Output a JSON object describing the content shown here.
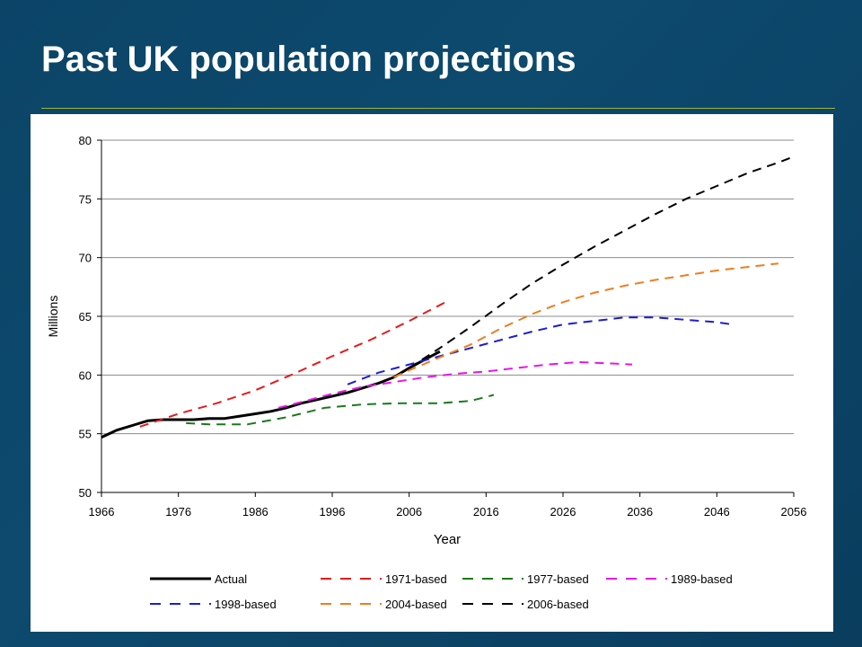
{
  "slide": {
    "title": "Past UK population projections"
  },
  "chart_data": {
    "type": "line",
    "title": "",
    "xlabel": "Year",
    "ylabel": "Millions",
    "xlim": [
      1966,
      2056
    ],
    "ylim": [
      50,
      80
    ],
    "x_ticks": [
      1966,
      1976,
      1986,
      1996,
      2006,
      2016,
      2026,
      2036,
      2046,
      2056
    ],
    "y_ticks": [
      50,
      55,
      60,
      65,
      70,
      75,
      80
    ],
    "grid": "horizontal",
    "legend_position": "bottom",
    "series": [
      {
        "name": "Actual",
        "color": "#000000",
        "style": "solid",
        "x": [
          1966,
          1968,
          1970,
          1972,
          1974,
          1976,
          1978,
          1980,
          1982,
          1984,
          1986,
          1988,
          1990,
          1992,
          1994,
          1996,
          1998,
          2000,
          2002,
          2004,
          2006,
          2008,
          2010
        ],
        "y": [
          54.7,
          55.3,
          55.7,
          56.1,
          56.2,
          56.2,
          56.2,
          56.3,
          56.3,
          56.5,
          56.7,
          56.9,
          57.2,
          57.6,
          57.9,
          58.2,
          58.5,
          58.9,
          59.3,
          59.8,
          60.6,
          61.3,
          62.0
        ]
      },
      {
        "name": "1971-based",
        "color": "#e8191c",
        "style": "dashed",
        "x": [
          1971,
          1976,
          1981,
          1986,
          1991,
          1996,
          2001,
          2006,
          2011
        ],
        "y": [
          55.6,
          56.7,
          57.6,
          58.7,
          60.1,
          61.6,
          63.0,
          64.6,
          66.3
        ]
      },
      {
        "name": "1977-based",
        "color": "#1a7a1a",
        "style": "dashed",
        "x": [
          1977,
          1980,
          1985,
          1990,
          1995,
          2000,
          2005,
          2010,
          2014,
          2017
        ],
        "y": [
          55.9,
          55.8,
          55.8,
          56.4,
          57.2,
          57.5,
          57.6,
          57.6,
          57.8,
          58.3
        ]
      },
      {
        "name": "1989-based",
        "color": "#e816e8",
        "style": "dashed",
        "x": [
          1989,
          1992,
          1996,
          2000,
          2004,
          2008,
          2012,
          2016,
          2020,
          2024,
          2028,
          2032,
          2035
        ],
        "y": [
          57.2,
          57.7,
          58.4,
          59.0,
          59.4,
          59.8,
          60.1,
          60.3,
          60.6,
          60.9,
          61.1,
          61.0,
          60.9
        ]
      },
      {
        "name": "1998-based",
        "color": "#1c1cd6",
        "style": "dashed",
        "x": [
          1998,
          2002,
          2006,
          2010,
          2014,
          2018,
          2022,
          2026,
          2030,
          2034,
          2038,
          2042,
          2046,
          2048
        ],
        "y": [
          59.2,
          60.2,
          60.9,
          61.6,
          62.3,
          63.0,
          63.7,
          64.3,
          64.6,
          64.9,
          64.9,
          64.7,
          64.5,
          64.3
        ]
      },
      {
        "name": "2004-based",
        "color": "#f07d1e",
        "style": "dashed",
        "x": [
          2004,
          2006,
          2010,
          2014,
          2018,
          2022,
          2026,
          2030,
          2034,
          2038,
          2042,
          2046,
          2050,
          2054
        ],
        "y": [
          59.8,
          60.4,
          61.5,
          62.6,
          64.0,
          65.2,
          66.2,
          67.0,
          67.6,
          68.1,
          68.5,
          68.9,
          69.2,
          69.5
        ]
      },
      {
        "name": "2006-based",
        "color": "#000000",
        "style": "dashed",
        "x": [
          2006,
          2010,
          2014,
          2018,
          2022,
          2026,
          2030,
          2034,
          2038,
          2042,
          2046,
          2050,
          2054,
          2056
        ],
        "y": [
          60.6,
          62.3,
          64.1,
          66.0,
          67.8,
          69.4,
          70.9,
          72.3,
          73.7,
          75.0,
          76.1,
          77.2,
          78.1,
          78.6
        ]
      }
    ]
  }
}
